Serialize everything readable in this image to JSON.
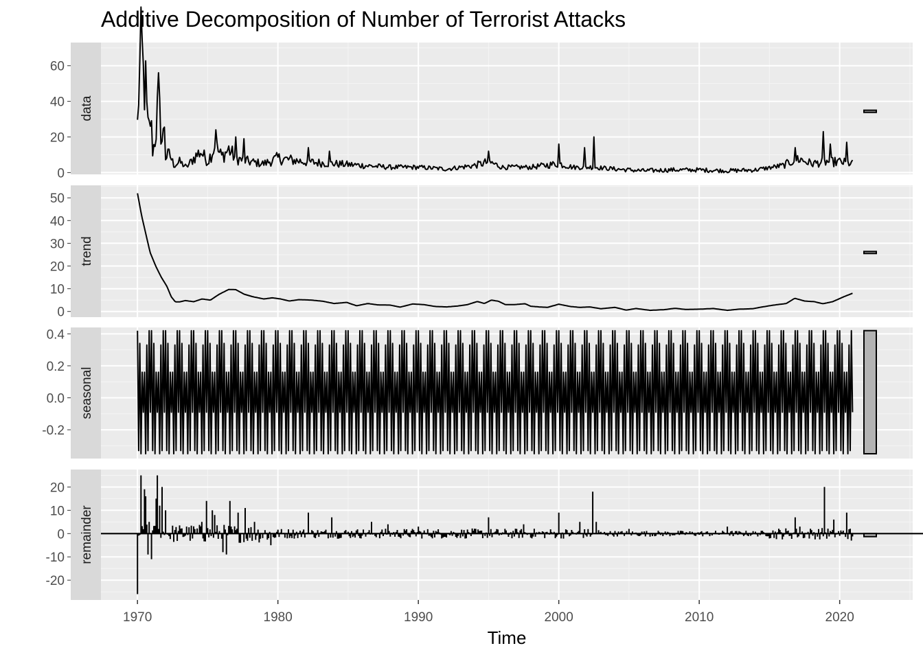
{
  "chart_data": {
    "type": "line",
    "title": "Additive Decomposition of Number of Terrorist Attacks",
    "xlabel": "Time",
    "x_start": 1970,
    "x_end": 2020.917,
    "frequency": 12,
    "xlim": [
      1967.4,
      2025.2
    ],
    "x_ticks": [
      "1970",
      "1980",
      "1990",
      "2000",
      "2010",
      "2020"
    ],
    "facets": [
      {
        "name": "data",
        "ylim": [
          -1,
          73
        ],
        "y_ticks": [
          "0",
          "20",
          "40",
          "60"
        ],
        "y_tick_values": [
          0,
          20,
          40,
          60
        ],
        "range_bar": [
          33.8,
          35.0
        ],
        "anchors": [
          [
            1970.0,
            26
          ],
          [
            1970.1,
            50
          ],
          [
            1970.3,
            69
          ],
          [
            1970.45,
            48
          ],
          [
            1970.55,
            52
          ],
          [
            1970.7,
            28
          ],
          [
            1970.8,
            20
          ],
          [
            1970.9,
            32
          ],
          [
            1971.0,
            23
          ],
          [
            1971.1,
            11
          ],
          [
            1971.3,
            22
          ],
          [
            1971.5,
            42
          ],
          [
            1971.6,
            30
          ],
          [
            1971.8,
            14
          ],
          [
            1971.9,
            33
          ],
          [
            1972.0,
            9
          ],
          [
            1972.3,
            10
          ],
          [
            1972.6,
            4
          ],
          [
            1973.0,
            6
          ],
          [
            1973.5,
            3
          ],
          [
            1974.0,
            8
          ],
          [
            1974.5,
            12
          ],
          [
            1975.0,
            6
          ],
          [
            1975.5,
            15
          ],
          [
            1976.0,
            9
          ],
          [
            1976.5,
            13
          ],
          [
            1977.0,
            8
          ],
          [
            1978.0,
            6
          ],
          [
            1979.0,
            5
          ],
          [
            1980.0,
            8
          ],
          [
            1982.0,
            6
          ],
          [
            1984.0,
            5
          ],
          [
            1986.0,
            4
          ],
          [
            1988.0,
            3
          ],
          [
            1990.0,
            3
          ],
          [
            1992.0,
            2
          ],
          [
            1994.0,
            4
          ],
          [
            1995.0,
            6
          ],
          [
            1996.0,
            3
          ],
          [
            1998.0,
            3
          ],
          [
            2000.0,
            5
          ],
          [
            2001.0,
            3
          ],
          [
            2002.5,
            3
          ],
          [
            2004.0,
            2
          ],
          [
            2006.0,
            1
          ],
          [
            2008.0,
            1.5
          ],
          [
            2010.0,
            1.5
          ],
          [
            2012.0,
            1
          ],
          [
            2014.0,
            1.5
          ],
          [
            2016.0,
            4
          ],
          [
            2017.0,
            8
          ],
          [
            2018.0,
            5
          ],
          [
            2019.0,
            6
          ],
          [
            2020.0,
            6
          ],
          [
            2020.917,
            5
          ]
        ],
        "spikes": [
          [
            1975.6,
            24
          ],
          [
            1977.0,
            20
          ],
          [
            1977.6,
            19
          ],
          [
            1982.2,
            14
          ],
          [
            1983.7,
            12
          ],
          [
            1995.0,
            12
          ],
          [
            2000.0,
            16
          ],
          [
            2001.8,
            14
          ],
          [
            2002.5,
            20
          ],
          [
            2016.8,
            14
          ],
          [
            2018.8,
            23
          ],
          [
            2019.3,
            16
          ],
          [
            2020.5,
            17
          ]
        ]
      },
      {
        "name": "trend",
        "ylim": [
          -2.5,
          55.5
        ],
        "y_ticks": [
          "0",
          "10",
          "20",
          "30",
          "40",
          "50"
        ],
        "y_tick_values": [
          0,
          10,
          20,
          30,
          40,
          50
        ],
        "range_bar": [
          25.5,
          26.4
        ],
        "anchors": [
          [
            1970.0,
            52
          ],
          [
            1970.3,
            42
          ],
          [
            1970.6,
            34
          ],
          [
            1970.9,
            26
          ],
          [
            1971.3,
            20
          ],
          [
            1971.7,
            15
          ],
          [
            1972.1,
            11
          ],
          [
            1972.4,
            6.5
          ],
          [
            1972.7,
            4.2
          ],
          [
            1973.0,
            4.2
          ],
          [
            1973.4,
            4.8
          ],
          [
            1974.0,
            4.3
          ],
          [
            1974.6,
            5.5
          ],
          [
            1975.2,
            5.0
          ],
          [
            1975.8,
            7.5
          ],
          [
            1976.5,
            9.7
          ],
          [
            1977.0,
            9.6
          ],
          [
            1977.6,
            7.6
          ],
          [
            1978.2,
            6.5
          ],
          [
            1979.0,
            5.5
          ],
          [
            1979.6,
            6.0
          ],
          [
            1980.2,
            5.5
          ],
          [
            1980.8,
            4.6
          ],
          [
            1981.5,
            5.2
          ],
          [
            1982.4,
            5.0
          ],
          [
            1983.2,
            4.5
          ],
          [
            1984.0,
            3.5
          ],
          [
            1984.9,
            4.0
          ],
          [
            1985.6,
            2.5
          ],
          [
            1986.4,
            3.5
          ],
          [
            1987.1,
            2.9
          ],
          [
            1988.0,
            2.8
          ],
          [
            1988.7,
            1.9
          ],
          [
            1989.6,
            3.3
          ],
          [
            1990.4,
            3.0
          ],
          [
            1991.2,
            2.2
          ],
          [
            1992.0,
            2.0
          ],
          [
            1992.8,
            2.4
          ],
          [
            1993.5,
            3.0
          ],
          [
            1994.2,
            4.4
          ],
          [
            1994.7,
            3.5
          ],
          [
            1995.2,
            5.0
          ],
          [
            1995.7,
            4.5
          ],
          [
            1996.2,
            3.0
          ],
          [
            1996.8,
            3.0
          ],
          [
            1997.6,
            3.4
          ],
          [
            1998.0,
            2.3
          ],
          [
            1998.6,
            2.0
          ],
          [
            1999.2,
            1.8
          ],
          [
            2000.0,
            3.2
          ],
          [
            2000.8,
            2.2
          ],
          [
            2001.5,
            1.8
          ],
          [
            2002.2,
            2.0
          ],
          [
            2003.0,
            1.2
          ],
          [
            2004.0,
            1.8
          ],
          [
            2004.8,
            0.6
          ],
          [
            2005.5,
            1.3
          ],
          [
            2006.5,
            0.5
          ],
          [
            2007.5,
            0.8
          ],
          [
            2008.3,
            1.4
          ],
          [
            2009.0,
            0.9
          ],
          [
            2010.0,
            1.0
          ],
          [
            2011.0,
            1.3
          ],
          [
            2012.0,
            0.5
          ],
          [
            2012.8,
            1.0
          ],
          [
            2013.8,
            1.2
          ],
          [
            2014.5,
            2.0
          ],
          [
            2015.3,
            2.8
          ],
          [
            2016.2,
            3.5
          ],
          [
            2016.8,
            5.8
          ],
          [
            2017.5,
            4.6
          ],
          [
            2018.2,
            4.3
          ],
          [
            2018.8,
            3.4
          ],
          [
            2019.5,
            4.3
          ],
          [
            2020.3,
            6.5
          ],
          [
            2020.917,
            8.0
          ]
        ]
      },
      {
        "name": "seasonal",
        "ylim": [
          -0.38,
          0.44
        ],
        "y_ticks": [
          "0.4",
          "0.2",
          "0.0",
          "-0.2"
        ],
        "y_tick_values": [
          0.4,
          0.2,
          0.0,
          -0.2
        ],
        "range_bar": [
          -0.35,
          0.42
        ],
        "monthly_pattern": [
          0.42,
          -0.33,
          0.34,
          -0.35,
          0.16,
          -0.09,
          0.16,
          -0.35,
          0.33,
          -0.33,
          0.42,
          -0.09
        ]
      },
      {
        "name": "remainder",
        "ylim": [
          -28.5,
          27.5
        ],
        "y_ticks": [
          "20",
          "10",
          "0",
          "-10",
          "-20"
        ],
        "y_tick_values": [
          20,
          10,
          0,
          -10,
          -20
        ],
        "range_bar": [
          -1.3,
          0.0
        ],
        "spikes": [
          [
            1970.0,
            -26
          ],
          [
            1970.25,
            25
          ],
          [
            1970.5,
            19
          ],
          [
            1970.6,
            16
          ],
          [
            1970.75,
            -9
          ],
          [
            1970.85,
            5
          ],
          [
            1971.0,
            -11
          ],
          [
            1971.3,
            15
          ],
          [
            1971.4,
            25
          ],
          [
            1971.6,
            12
          ],
          [
            1971.75,
            20
          ],
          [
            1972.0,
            10
          ],
          [
            1973.5,
            3
          ],
          [
            1974.6,
            5
          ],
          [
            1974.9,
            14
          ],
          [
            1975.3,
            10
          ],
          [
            1975.5,
            8
          ],
          [
            1976.1,
            -8
          ],
          [
            1976.3,
            -9
          ],
          [
            1976.6,
            14
          ],
          [
            1977.2,
            9
          ],
          [
            1977.7,
            11
          ],
          [
            1978.3,
            5
          ],
          [
            1979.5,
            -5
          ],
          [
            1982.2,
            9
          ],
          [
            1983.8,
            7
          ],
          [
            1986.7,
            5
          ],
          [
            1987.8,
            4
          ],
          [
            1990.0,
            3
          ],
          [
            1995.0,
            7
          ],
          [
            1997.5,
            4
          ],
          [
            2000.0,
            9
          ],
          [
            2001.5,
            5
          ],
          [
            2002.4,
            18
          ],
          [
            2002.7,
            5
          ],
          [
            2005.0,
            2
          ],
          [
            2012.0,
            3
          ],
          [
            2016.8,
            7
          ],
          [
            2017.2,
            3
          ],
          [
            2018.9,
            20
          ],
          [
            2019.6,
            6
          ],
          [
            2020.5,
            9
          ],
          [
            2020.8,
            -3
          ]
        ]
      }
    ]
  }
}
